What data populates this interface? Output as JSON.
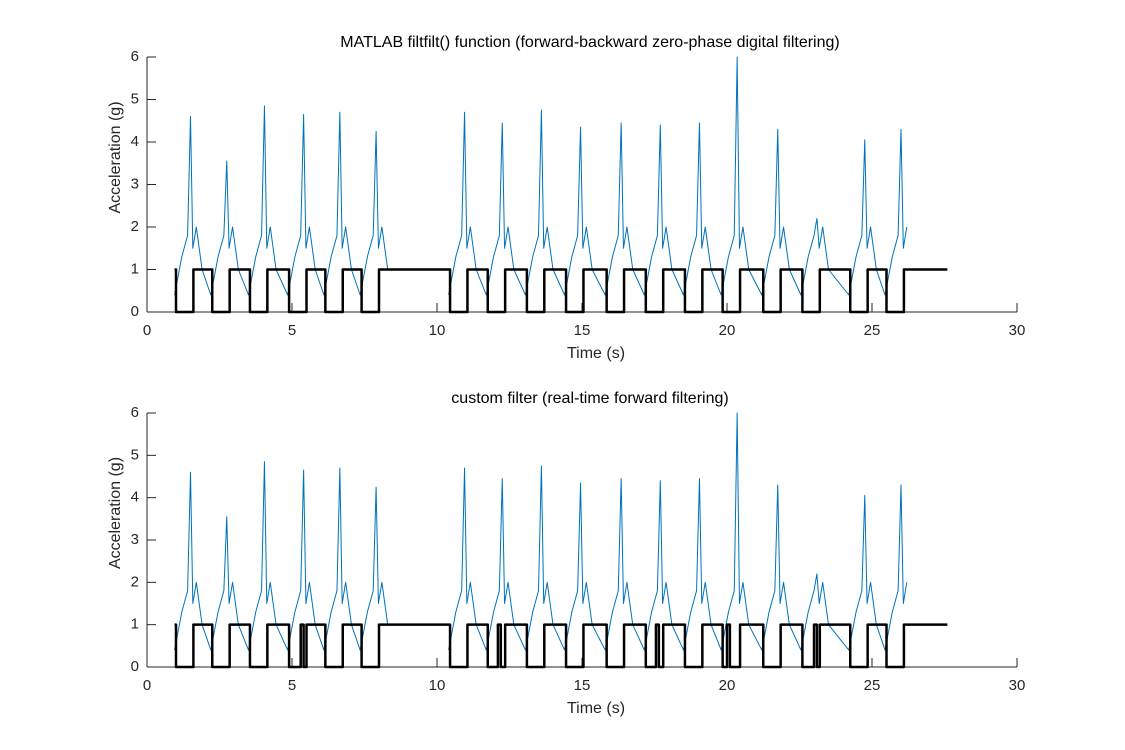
{
  "chart_data": [
    {
      "type": "line",
      "title": "MATLAB filtfilt() function (forward-backward zero-phase digital filtering)",
      "xlabel": "Time (s)",
      "ylabel": "Acceleration (g)",
      "xlim": [
        0,
        30
      ],
      "ylim": [
        0,
        6
      ],
      "xticks": [
        0,
        5,
        10,
        15,
        20,
        25,
        30
      ],
      "yticks": [
        0,
        1,
        2,
        3,
        4,
        5,
        6
      ],
      "series": [
        {
          "color": "#0072BD",
          "x": [
            0.95,
            1.2,
            1.4,
            1.5,
            1.58,
            1.7,
            1.9,
            2.2,
            2.45,
            2.65,
            2.75,
            2.83,
            2.95,
            3.15,
            3.5,
            3.75,
            3.95,
            4.05,
            4.13,
            4.25,
            4.45,
            4.85,
            5.1,
            5.3,
            5.4,
            5.48,
            5.6,
            5.8,
            6.1,
            6.35,
            6.55,
            6.65,
            6.73,
            6.85,
            7.05,
            7.35,
            7.6,
            7.8,
            7.9,
            7.98,
            8.1,
            8.3,
            9.3,
            10.4,
            10.65,
            10.85,
            10.95,
            11.03,
            11.15,
            11.35,
            11.7,
            11.95,
            12.15,
            12.25,
            12.33,
            12.45,
            12.65,
            13.05,
            13.3,
            13.5,
            13.6,
            13.68,
            13.8,
            14.0,
            14.4,
            14.65,
            14.85,
            14.95,
            15.03,
            15.15,
            15.35,
            15.8,
            16.05,
            16.25,
            16.35,
            16.43,
            16.55,
            16.75,
            17.15,
            17.4,
            17.6,
            17.7,
            17.78,
            17.9,
            18.1,
            18.5,
            18.75,
            18.95,
            19.05,
            19.13,
            19.25,
            19.45,
            19.8,
            20.05,
            20.25,
            20.35,
            20.43,
            20.55,
            20.75,
            21.2,
            21.45,
            21.65,
            21.75,
            21.83,
            21.95,
            22.15,
            22.55,
            22.8,
            23.0,
            23.1,
            23.18,
            23.3,
            23.5,
            24.2,
            24.45,
            24.65,
            24.75,
            24.83,
            24.95,
            25.15,
            25.45,
            25.7,
            25.9,
            26.0,
            26.08,
            26.2
          ],
          "values": [
            0.4,
            1.3,
            1.8,
            4.6,
            1.5,
            2.0,
            1.0,
            0.4,
            1.3,
            1.8,
            3.55,
            1.5,
            2.0,
            1.0,
            0.4,
            1.3,
            1.8,
            4.85,
            1.5,
            2.0,
            1.0,
            0.4,
            1.3,
            1.8,
            4.65,
            1.5,
            2.0,
            1.0,
            0.4,
            1.3,
            1.8,
            4.7,
            1.5,
            2.0,
            1.0,
            0.4,
            1.3,
            1.8,
            4.25,
            1.5,
            2.0,
            1.0,
            null,
            0.4,
            1.3,
            1.8,
            4.7,
            1.5,
            2.0,
            1.0,
            0.4,
            1.3,
            1.8,
            4.45,
            1.5,
            2.0,
            1.0,
            0.4,
            1.3,
            1.8,
            4.75,
            1.5,
            2.0,
            1.0,
            0.4,
            1.3,
            1.8,
            4.35,
            1.5,
            2.0,
            1.0,
            0.4,
            1.3,
            1.8,
            4.45,
            1.5,
            2.0,
            1.0,
            0.4,
            1.3,
            1.8,
            4.4,
            1.5,
            2.0,
            1.0,
            0.4,
            1.3,
            1.8,
            4.45,
            1.5,
            2.0,
            1.0,
            0.4,
            1.3,
            1.8,
            6.0,
            1.5,
            2.0,
            1.0,
            0.4,
            1.3,
            1.8,
            4.3,
            1.5,
            2.0,
            1.0,
            0.4,
            1.3,
            1.8,
            2.2,
            1.5,
            2.0,
            1.0,
            0.4,
            1.3,
            1.8,
            4.05,
            1.5,
            2.0,
            1.0,
            0.4,
            1.3,
            1.8,
            4.3,
            1.5,
            2.0
          ]
        },
        {
          "color": "#000000",
          "x": [
            0.95,
            1.0,
            1.0,
            1.6,
            1.6,
            2.25,
            2.25,
            2.85,
            2.85,
            3.55,
            3.55,
            4.15,
            4.15,
            4.9,
            4.9,
            5.5,
            5.5,
            6.15,
            6.15,
            6.75,
            6.75,
            7.4,
            7.4,
            8.0,
            8.0,
            10.45,
            10.45,
            11.05,
            11.05,
            11.75,
            11.75,
            12.35,
            12.35,
            13.1,
            13.1,
            13.7,
            13.7,
            14.45,
            14.45,
            15.05,
            15.05,
            15.85,
            15.85,
            16.45,
            16.45,
            17.2,
            17.2,
            17.8,
            17.8,
            18.55,
            18.55,
            19.15,
            19.15,
            19.85,
            19.85,
            20.45,
            20.45,
            21.25,
            21.25,
            21.85,
            21.85,
            22.6,
            22.6,
            23.2,
            23.2,
            24.25,
            24.25,
            24.85,
            24.85,
            25.5,
            25.5,
            26.1,
            26.1,
            27.6
          ],
          "values": [
            1,
            1,
            0,
            0,
            1,
            1,
            0,
            0,
            1,
            1,
            0,
            0,
            1,
            1,
            0,
            0,
            1,
            1,
            0,
            0,
            1,
            1,
            0,
            0,
            1,
            1,
            0,
            0,
            1,
            1,
            0,
            0,
            1,
            1,
            0,
            0,
            1,
            1,
            0,
            0,
            1,
            1,
            0,
            0,
            1,
            1,
            0,
            0,
            1,
            1,
            0,
            0,
            1,
            1,
            0,
            0,
            1,
            1,
            0,
            0,
            1,
            1,
            0,
            0,
            1,
            1,
            0,
            0,
            1,
            1,
            0,
            0,
            1,
            1
          ]
        }
      ]
    },
    {
      "type": "line",
      "title": "custom filter (real-time forward filtering)",
      "xlabel": "Time (s)",
      "ylabel": "Acceleration (g)",
      "xlim": [
        0,
        30
      ],
      "ylim": [
        0,
        6
      ],
      "xticks": [
        0,
        5,
        10,
        15,
        20,
        25,
        30
      ],
      "yticks": [
        0,
        1,
        2,
        3,
        4,
        5,
        6
      ],
      "series": [
        {
          "color": "#0072BD",
          "x": [
            0.95,
            1.2,
            1.4,
            1.5,
            1.58,
            1.7,
            1.9,
            2.2,
            2.45,
            2.65,
            2.75,
            2.83,
            2.95,
            3.15,
            3.5,
            3.75,
            3.95,
            4.05,
            4.13,
            4.25,
            4.45,
            4.85,
            5.1,
            5.3,
            5.4,
            5.48,
            5.6,
            5.8,
            6.1,
            6.35,
            6.55,
            6.65,
            6.73,
            6.85,
            7.05,
            7.35,
            7.6,
            7.8,
            7.9,
            7.98,
            8.1,
            8.3,
            9.3,
            10.4,
            10.65,
            10.85,
            10.95,
            11.03,
            11.15,
            11.35,
            11.7,
            11.95,
            12.15,
            12.25,
            12.33,
            12.45,
            12.65,
            13.05,
            13.3,
            13.5,
            13.6,
            13.68,
            13.8,
            14.0,
            14.4,
            14.65,
            14.85,
            14.95,
            15.03,
            15.15,
            15.35,
            15.8,
            16.05,
            16.25,
            16.35,
            16.43,
            16.55,
            16.75,
            17.15,
            17.4,
            17.6,
            17.7,
            17.78,
            17.9,
            18.1,
            18.5,
            18.75,
            18.95,
            19.05,
            19.13,
            19.25,
            19.45,
            19.8,
            20.05,
            20.25,
            20.35,
            20.43,
            20.55,
            20.75,
            21.2,
            21.45,
            21.65,
            21.75,
            21.83,
            21.95,
            22.15,
            22.55,
            22.8,
            23.0,
            23.1,
            23.18,
            23.3,
            23.5,
            24.2,
            24.45,
            24.65,
            24.75,
            24.83,
            24.95,
            25.15,
            25.45,
            25.7,
            25.9,
            26.0,
            26.08,
            26.2
          ],
          "values": [
            0.4,
            1.3,
            1.8,
            4.6,
            1.5,
            2.0,
            1.0,
            0.4,
            1.3,
            1.8,
            3.55,
            1.5,
            2.0,
            1.0,
            0.4,
            1.3,
            1.8,
            4.85,
            1.5,
            2.0,
            1.0,
            0.4,
            1.3,
            1.8,
            4.65,
            1.5,
            2.0,
            1.0,
            0.4,
            1.3,
            1.8,
            4.7,
            1.5,
            2.0,
            1.0,
            0.4,
            1.3,
            1.8,
            4.25,
            1.5,
            2.0,
            1.0,
            null,
            0.4,
            1.3,
            1.8,
            4.7,
            1.5,
            2.0,
            1.0,
            0.4,
            1.3,
            1.8,
            4.45,
            1.5,
            2.0,
            1.0,
            0.4,
            1.3,
            1.8,
            4.75,
            1.5,
            2.0,
            1.0,
            0.4,
            1.3,
            1.8,
            4.35,
            1.5,
            2.0,
            1.0,
            0.4,
            1.3,
            1.8,
            4.45,
            1.5,
            2.0,
            1.0,
            0.4,
            1.3,
            1.8,
            4.4,
            1.5,
            2.0,
            1.0,
            0.4,
            1.3,
            1.8,
            4.45,
            1.5,
            2.0,
            1.0,
            0.4,
            1.3,
            1.8,
            6.0,
            1.5,
            2.0,
            1.0,
            0.4,
            1.3,
            1.8,
            4.3,
            1.5,
            2.0,
            1.0,
            0.4,
            1.3,
            1.8,
            2.2,
            1.5,
            2.0,
            1.0,
            0.4,
            1.3,
            1.8,
            4.05,
            1.5,
            2.0,
            1.0,
            0.4,
            1.3,
            1.8,
            4.3,
            1.5,
            2.0
          ]
        },
        {
          "color": "#000000",
          "x": [
            0.95,
            1.0,
            1.0,
            1.6,
            1.6,
            2.25,
            2.25,
            2.85,
            2.85,
            3.55,
            3.55,
            4.15,
            4.15,
            4.9,
            4.9,
            5.3,
            5.3,
            5.4,
            5.4,
            5.5,
            5.5,
            6.15,
            6.15,
            6.75,
            6.75,
            7.4,
            7.4,
            8.0,
            8.0,
            10.45,
            10.45,
            11.05,
            11.05,
            11.75,
            11.75,
            12.1,
            12.1,
            12.2,
            12.2,
            12.35,
            12.35,
            13.1,
            13.1,
            13.7,
            13.7,
            14.45,
            14.45,
            15.05,
            15.05,
            15.85,
            15.85,
            16.45,
            16.45,
            17.2,
            17.2,
            17.55,
            17.55,
            17.65,
            17.65,
            17.8,
            17.8,
            18.55,
            18.55,
            19.15,
            19.15,
            19.85,
            19.85,
            20.0,
            20.0,
            20.1,
            20.1,
            20.45,
            20.45,
            21.25,
            21.25,
            21.85,
            21.85,
            22.6,
            22.6,
            23.0,
            23.0,
            23.1,
            23.1,
            23.2,
            23.2,
            24.25,
            24.25,
            24.85,
            24.85,
            25.5,
            25.5,
            26.1,
            26.1,
            27.6
          ],
          "values": [
            1,
            1,
            0,
            0,
            1,
            1,
            0,
            0,
            1,
            1,
            0,
            0,
            1,
            1,
            0,
            0,
            1,
            1,
            0,
            0,
            1,
            1,
            0,
            0,
            1,
            1,
            0,
            0,
            1,
            1,
            0,
            0,
            1,
            1,
            0,
            0,
            1,
            1,
            0,
            0,
            1,
            1,
            0,
            0,
            1,
            1,
            0,
            0,
            1,
            1,
            0,
            0,
            1,
            1,
            0,
            0,
            1,
            1,
            0,
            0,
            1,
            1,
            0,
            0,
            1,
            1,
            0,
            0,
            1,
            1,
            0,
            0,
            1,
            1,
            0,
            0,
            1,
            1,
            0,
            0,
            1,
            1,
            0,
            0,
            1,
            1,
            0,
            0,
            1,
            1,
            0,
            0,
            1,
            1
          ]
        }
      ]
    }
  ]
}
